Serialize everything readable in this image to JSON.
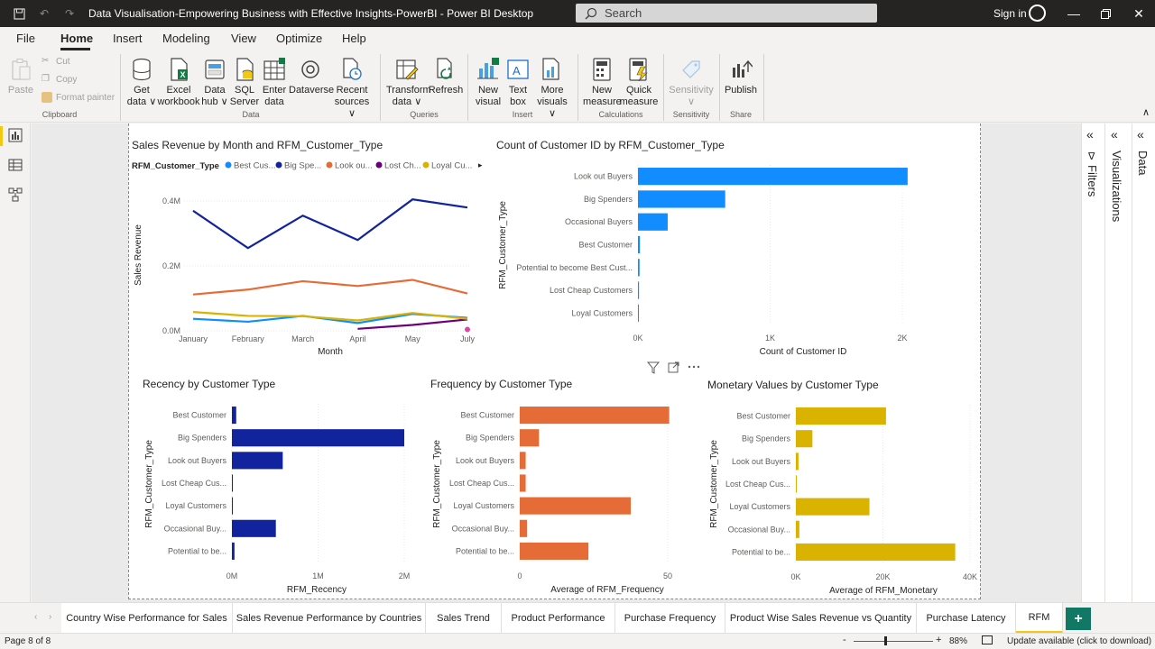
{
  "window": {
    "title": "Data Visualisation-Empowering Business with Effective Insights-PowerBI - Power BI Desktop",
    "search_placeholder": "Search",
    "signin": "Sign in"
  },
  "menu": {
    "items": [
      "File",
      "Home",
      "Insert",
      "Modeling",
      "View",
      "Optimize",
      "Help"
    ],
    "active": "Home"
  },
  "ribbon": {
    "clipboard": {
      "paste": "Paste",
      "cut": "Cut",
      "copy": "Copy",
      "format_painter": "Format painter",
      "group": "Clipboard"
    },
    "data": {
      "get_data": [
        "Get",
        "data ∨"
      ],
      "excel": [
        "Excel",
        "workbook"
      ],
      "data_hub": [
        "Data",
        "hub ∨"
      ],
      "sql": [
        "SQL",
        "Server"
      ],
      "enter_data": [
        "Enter",
        "data"
      ],
      "dataverse": "Dataverse",
      "recent": [
        "Recent",
        "sources ∨"
      ],
      "group": "Data"
    },
    "queries": {
      "transform": [
        "Transform",
        "data ∨"
      ],
      "refresh": "Refresh",
      "group": "Queries"
    },
    "insert": {
      "new_visual": [
        "New",
        "visual"
      ],
      "text_box": [
        "Text",
        "box"
      ],
      "more_visuals": [
        "More",
        "visuals ∨"
      ],
      "group": "Insert"
    },
    "calculations": {
      "new_measure": [
        "New",
        "measure"
      ],
      "quick_measure": [
        "Quick",
        "measure"
      ],
      "group": "Calculations"
    },
    "sensitivity": {
      "label": "Sensitivity",
      "group": "Sensitivity"
    },
    "share": {
      "publish": "Publish",
      "group": "Share"
    }
  },
  "panes": {
    "filters": "Filters",
    "visualizations": "Visualizations",
    "data": "Data"
  },
  "colors": {
    "blue": "#118dff",
    "navy": "#12239e",
    "orange": "#e66c37",
    "purple": "#6b007b",
    "pink": "#e044a7",
    "yellow": "#d9b300",
    "accent": "#f2c811"
  },
  "chart_data": [
    {
      "type": "line",
      "title": "Sales Revenue by Month and RFM_Customer_Type",
      "xlabel": "Month",
      "ylabel": "Sales Revenue",
      "legend_title": "RFM_Customer_Type",
      "legend_labels": [
        "Best Cus...",
        "Big Spe...",
        "Look ou...",
        "Lost Ch...",
        "Loyal Cu..."
      ],
      "categories": [
        "January",
        "February",
        "March",
        "April",
        "May",
        "July"
      ],
      "yticks": [
        "0.0M",
        "0.2M",
        "0.4M"
      ],
      "ylim": [
        0,
        0.45
      ],
      "series": [
        {
          "name": "Best Customer",
          "color": "#118dff",
          "values": [
            0.037,
            0.028,
            0.046,
            0.024,
            0.052,
            0.04
          ]
        },
        {
          "name": "Big Spenders",
          "color": "#12239e",
          "values": [
            0.37,
            0.255,
            0.355,
            0.28,
            0.405,
            0.38
          ]
        },
        {
          "name": "Look out Buyers",
          "color": "#e66c37",
          "values": [
            0.112,
            0.127,
            0.153,
            0.138,
            0.157,
            0.115
          ]
        },
        {
          "name": "Lost Cheap Customers",
          "color": "#6b007b",
          "values": [
            null,
            null,
            null,
            0.006,
            0.018,
            0.035
          ]
        },
        {
          "name": "Loyal Customers",
          "color": "#d9b300",
          "values": [
            0.058,
            0.046,
            0.045,
            0.032,
            0.055,
            0.037
          ]
        },
        {
          "name": "Potential to become Best Customer",
          "color": "#e044a7",
          "values": [
            null,
            null,
            null,
            null,
            null,
            0.004
          ]
        }
      ]
    },
    {
      "type": "bar",
      "title": "Count of Customer ID by RFM_Customer_Type",
      "xlabel": "Count of Customer ID",
      "ylabel": "RFM_Customer_Type",
      "categories": [
        "Look out Buyers",
        "Big Spenders",
        "Occasional Buyers",
        "Best Customer",
        "Potential to become Best Cust...",
        "Lost Cheap Customers",
        "Loyal Customers"
      ],
      "values": [
        2040,
        660,
        225,
        15,
        12,
        8,
        6
      ],
      "xticks": [
        "0K",
        "1K",
        "2K"
      ],
      "xlim": [
        0,
        2000
      ],
      "color": "#118dff"
    },
    {
      "type": "bar",
      "title": "Recency by Customer Type",
      "xlabel": "RFM_Recency",
      "ylabel": "RFM_Customer_Type",
      "categories": [
        "Best Customer",
        "Big Spenders",
        "Look out Buyers",
        "Lost Cheap Cus...",
        "Loyal Customers",
        "Occasional Buy...",
        "Potential to be..."
      ],
      "values": [
        50000,
        2000000,
        590000,
        8000,
        8000,
        510000,
        30000
      ],
      "xticks": [
        "0M",
        "1M",
        "2M"
      ],
      "xlim": [
        0,
        2000000
      ],
      "color": "#12239e"
    },
    {
      "type": "bar",
      "title": "Frequency by Customer Type",
      "xlabel": "Average of RFM_Frequency",
      "ylabel": "RFM_Customer_Type",
      "categories": [
        "Best Customer",
        "Big Spenders",
        "Look out Buyers",
        "Lost Cheap Cus...",
        "Loyal Customers",
        "Occasional Buy...",
        "Potential to be..."
      ],
      "values": [
        50.5,
        6.5,
        2.0,
        2.0,
        37.5,
        2.5,
        23.2
      ],
      "xticks": [
        "0",
        "50"
      ],
      "xlim": [
        0,
        50
      ],
      "color": "#e66c37"
    },
    {
      "type": "bar",
      "title": "Monetary Values by Customer Type",
      "xlabel": "Average of RFM_Monetary",
      "ylabel": "RFM_Customer_Type",
      "categories": [
        "Best Customer",
        "Big Spenders",
        "Look out Buyers",
        "Lost Cheap Cus...",
        "Loyal Customers",
        "Occasional Buy...",
        "Potential to be..."
      ],
      "values": [
        20700,
        3800,
        600,
        200,
        16900,
        800,
        36600
      ],
      "xticks": [
        "0K",
        "20K",
        "40K"
      ],
      "xlim": [
        0,
        40000
      ],
      "color": "#d9b300"
    }
  ],
  "tabs": [
    "Country Wise Performance for Sales",
    "Sales Revenue Performance by Countries",
    "Sales Trend",
    "Product Performance",
    "Purchase Frequency",
    "Product Wise Sales Revenue vs Quantity",
    "Purchase Latency",
    "RFM"
  ],
  "active_tab": "RFM",
  "status": {
    "page": "Page 8 of 8",
    "zoom": "88%",
    "update": "Update available (click to download)"
  }
}
